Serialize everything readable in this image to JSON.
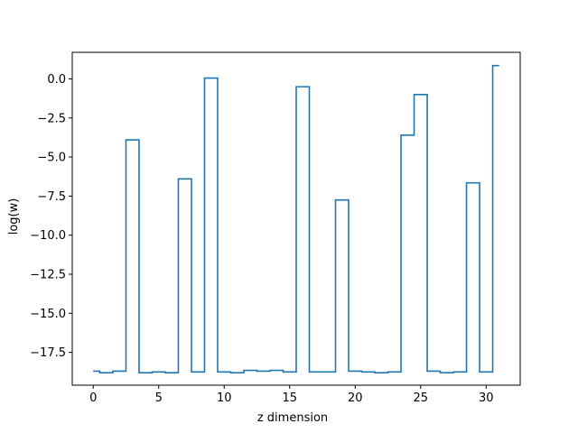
{
  "chart_data": {
    "type": "line",
    "drawstyle": "steps-mid",
    "xlabel": "z dimension",
    "ylabel": "log(w)",
    "xlim": [
      -1.6,
      32.6
    ],
    "ylim": [
      -19.6,
      1.7
    ],
    "xticks": [
      0,
      5,
      10,
      15,
      20,
      25,
      30
    ],
    "xtick_labels": [
      "0",
      "5",
      "10",
      "15",
      "20",
      "25",
      "30"
    ],
    "yticks": [
      0,
      -2.5,
      -5,
      -7.5,
      -10,
      -12.5,
      -15,
      -17.5
    ],
    "ytick_labels": [
      "0.0",
      "−2.5",
      "−5.0",
      "−7.5",
      "−10.0",
      "−12.5",
      "−15.0",
      "−17.5"
    ],
    "grid": false,
    "series": [
      {
        "color": "#1f77b4",
        "x": [
          0,
          1,
          2,
          3,
          4,
          5,
          6,
          7,
          8,
          9,
          10,
          11,
          12,
          13,
          14,
          15,
          16,
          17,
          18,
          19,
          20,
          21,
          22,
          23,
          24,
          25,
          26,
          27,
          28,
          29,
          30,
          31
        ],
        "values": [
          -18.7,
          -18.8,
          -18.7,
          -3.9,
          -18.8,
          -18.75,
          -18.8,
          -6.4,
          -18.75,
          0.05,
          -18.75,
          -18.8,
          -18.65,
          -18.7,
          -18.65,
          -18.75,
          -0.5,
          -18.75,
          -18.75,
          -7.75,
          -18.7,
          -18.75,
          -18.8,
          -18.75,
          -3.6,
          -1.0,
          -18.7,
          -18.8,
          -18.75,
          -6.65,
          -18.75,
          0.85
        ]
      }
    ]
  }
}
